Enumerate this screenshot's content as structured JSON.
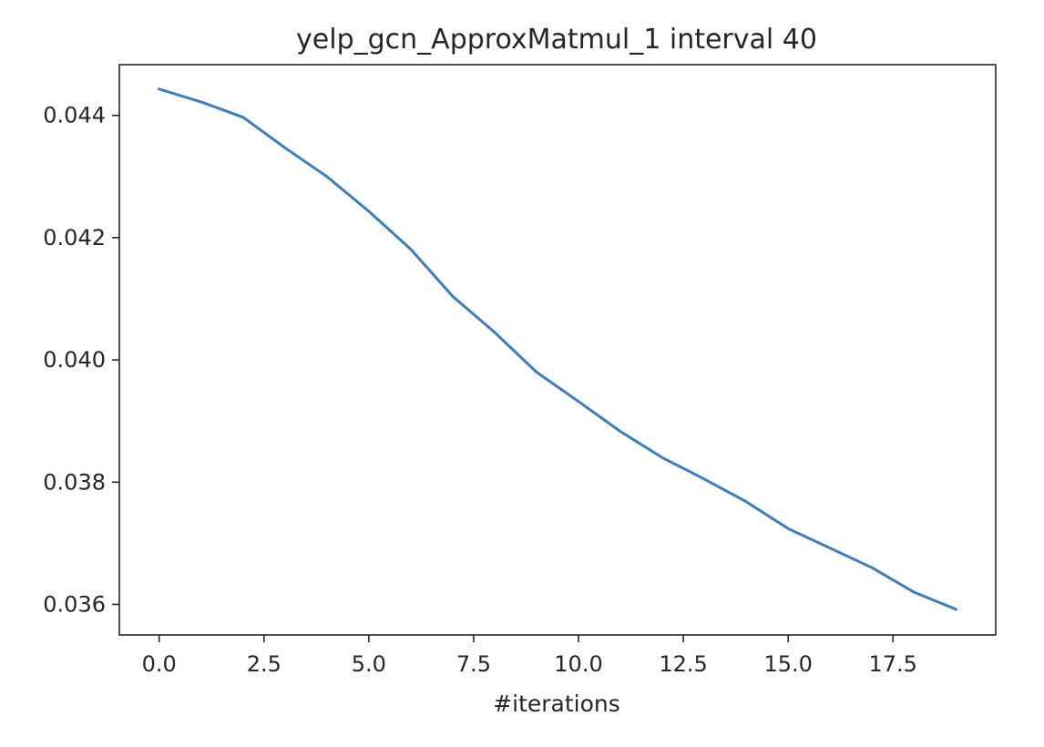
{
  "chart_data": {
    "type": "line",
    "title": "yelp_gcn_ApproxMatmul_1 interval 40",
    "xlabel": "#iterations",
    "ylabel": "",
    "xlim": [
      -0.95,
      19.95
    ],
    "ylim": [
      0.0355,
      0.04483
    ],
    "xticks": [
      0.0,
      2.5,
      5.0,
      7.5,
      10.0,
      12.5,
      15.0,
      17.5
    ],
    "xtick_labels": [
      "0.0",
      "2.5",
      "5.0",
      "7.5",
      "10.0",
      "12.5",
      "15.0",
      "17.5"
    ],
    "yticks": [
      0.036,
      0.038,
      0.04,
      0.042,
      0.044
    ],
    "ytick_labels": [
      "0.036",
      "0.038",
      "0.040",
      "0.042",
      "0.044"
    ],
    "grid": false,
    "legend": "none",
    "series": [
      {
        "color": "#3a7ebf",
        "x": [
          0,
          1,
          2,
          3,
          4,
          5,
          6,
          7,
          8,
          9,
          10,
          11,
          12,
          13,
          14,
          15,
          16,
          17,
          18,
          19
        ],
        "y": [
          0.04443,
          0.04422,
          0.04397,
          0.04347,
          0.043,
          0.04243,
          0.04181,
          0.04104,
          0.04045,
          0.0398,
          0.03932,
          0.03883,
          0.0384,
          0.03805,
          0.03768,
          0.03724,
          0.03692,
          0.0366,
          0.0362,
          0.03592
        ]
      }
    ]
  }
}
